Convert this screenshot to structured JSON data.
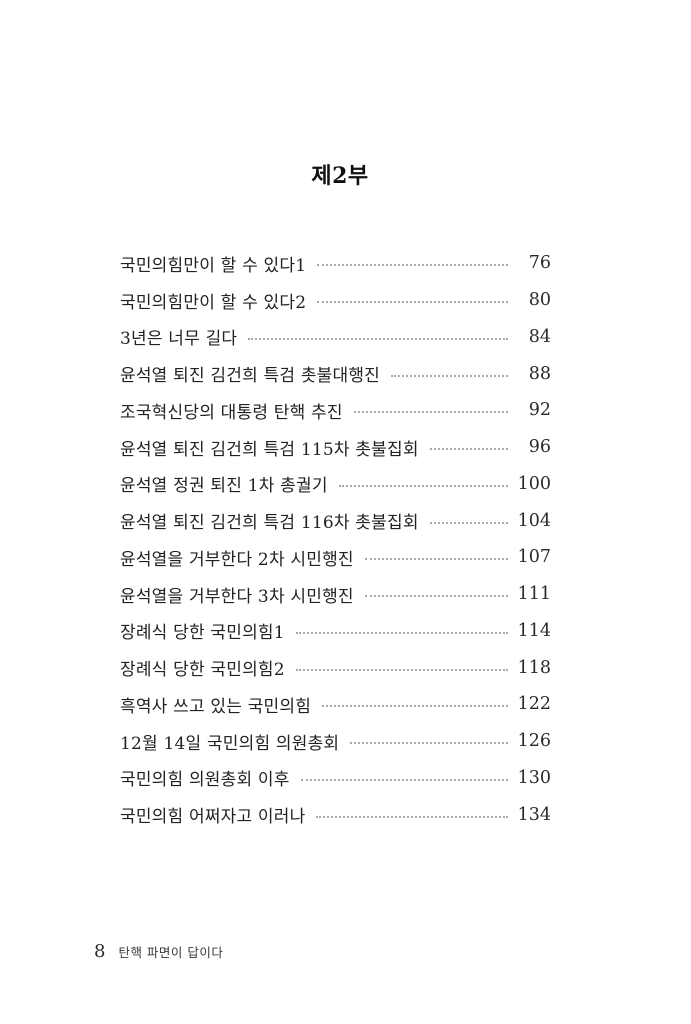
{
  "header": {
    "section_title": "제2부"
  },
  "toc": {
    "entries": [
      {
        "title": "국민의힘만이 할 수 있다1",
        "page": "76"
      },
      {
        "title": "국민의힘만이 할 수 있다2",
        "page": "80"
      },
      {
        "title": "3년은 너무 길다",
        "page": "84"
      },
      {
        "title": "윤석열 퇴진 김건희 특검 촛불대행진",
        "page": "88"
      },
      {
        "title": "조국혁신당의 대통령 탄핵 추진",
        "page": "92"
      },
      {
        "title": "윤석열 퇴진 김건희 특검 115차 촛불집회",
        "page": "96"
      },
      {
        "title": "윤석열 정권 퇴진 1차 총궐기",
        "page": "100"
      },
      {
        "title": "윤석열 퇴진 김건희 특검 116차 촛불집회",
        "page": "104"
      },
      {
        "title": "윤석열을 거부한다 2차 시민행진",
        "page": "107"
      },
      {
        "title": "윤석열을 거부한다 3차 시민행진",
        "page": "111"
      },
      {
        "title": "장례식 당한 국민의힘1",
        "page": "114"
      },
      {
        "title": "장례식 당한 국민의힘2",
        "page": "118"
      },
      {
        "title": "흑역사 쓰고 있는 국민의힘",
        "page": "122"
      },
      {
        "title": "12월 14일 국민의힘 의원총회",
        "page": "126"
      },
      {
        "title": "국민의힘 의원총회 이후",
        "page": "130"
      },
      {
        "title": "국민의힘 어쩌자고 이러나",
        "page": "134"
      }
    ]
  },
  "footer": {
    "page_number": "8",
    "book_title": "탄핵 파면이 답이다"
  }
}
